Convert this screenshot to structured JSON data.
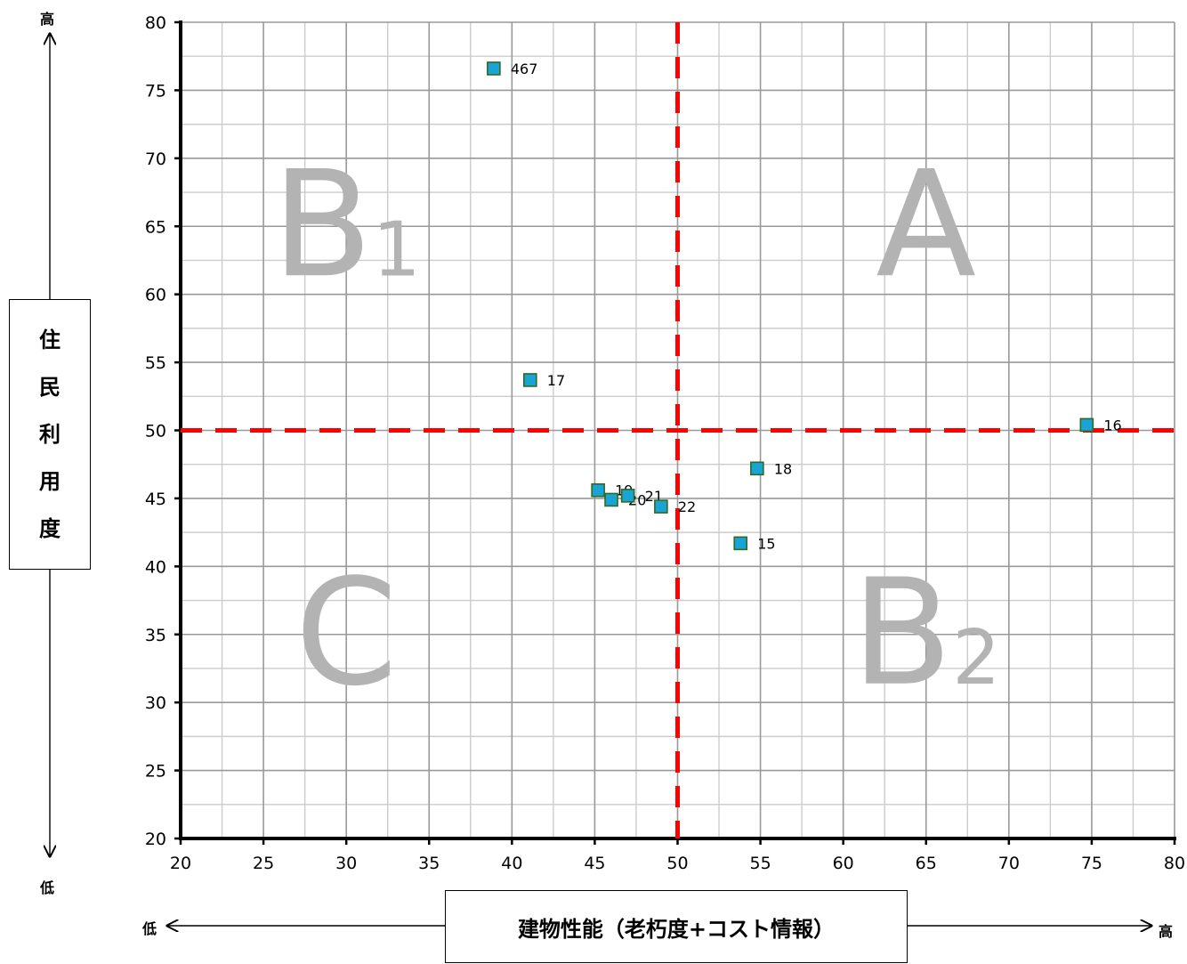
{
  "chart_data": {
    "type": "scatter",
    "xlim": [
      20,
      80
    ],
    "ylim": [
      20,
      80
    ],
    "x_ticks": [
      20,
      25,
      30,
      35,
      40,
      45,
      50,
      55,
      60,
      65,
      70,
      75,
      80
    ],
    "y_ticks": [
      20,
      25,
      30,
      35,
      40,
      45,
      50,
      55,
      60,
      65,
      70,
      75,
      80
    ],
    "grid": true,
    "xlabel": "建物性能（老朽度+コスト情報）",
    "ylabel": "住民利用度",
    "x_axis_low": "低",
    "x_axis_high": "高",
    "y_axis_low": "低",
    "y_axis_high": "高",
    "threshold_x": 50,
    "threshold_y": 50,
    "points": [
      {
        "label": "467",
        "x": 38.9,
        "y": 76.6
      },
      {
        "label": "17",
        "x": 41.1,
        "y": 53.7
      },
      {
        "label": "16",
        "x": 74.7,
        "y": 50.4
      },
      {
        "label": "18",
        "x": 54.8,
        "y": 47.2
      },
      {
        "label": "19",
        "x": 45.2,
        "y": 45.6
      },
      {
        "label": "20",
        "x": 46.0,
        "y": 44.9
      },
      {
        "label": "21",
        "x": 47.0,
        "y": 45.2
      },
      {
        "label": "22",
        "x": 49.0,
        "y": 44.4
      },
      {
        "label": "15",
        "x": 53.8,
        "y": 41.7
      }
    ],
    "quadrants": [
      {
        "label": "B",
        "sub": "1",
        "x": 30,
        "y": 65
      },
      {
        "label": "A",
        "sub": "",
        "x": 65,
        "y": 65
      },
      {
        "label": "C",
        "sub": "",
        "x": 30,
        "y": 35
      },
      {
        "label": "B",
        "sub": "2",
        "x": 65,
        "y": 35
      }
    ],
    "colors": {
      "marker_fill": "#1aa3d6",
      "marker_stroke": "#2e6b1f",
      "threshold_line": "#ff0000",
      "major_grid": "#999999",
      "minor_grid": "#cccccc",
      "quadrant_text": "#b3b3b3"
    }
  }
}
